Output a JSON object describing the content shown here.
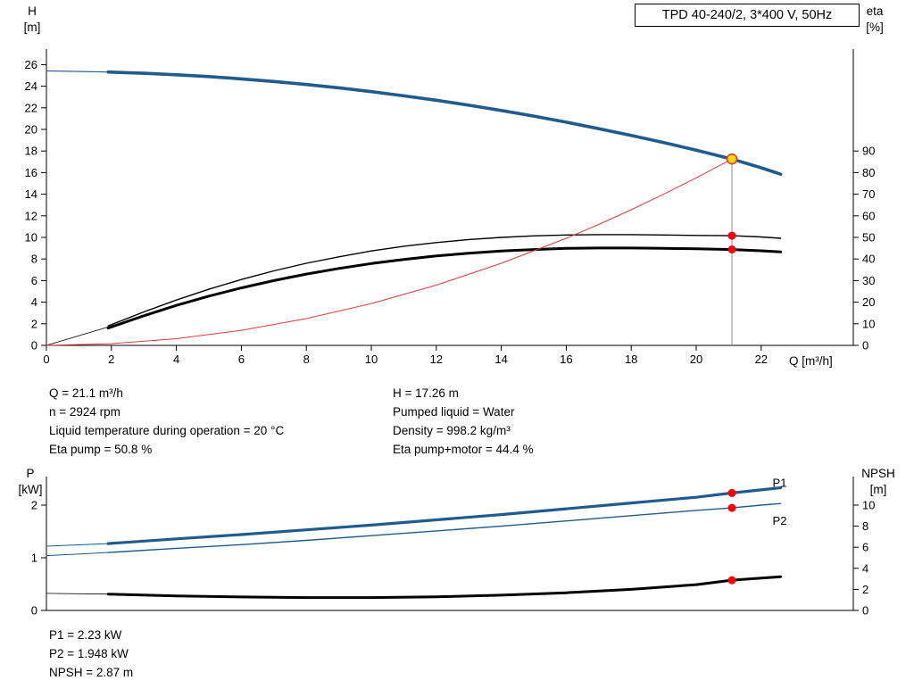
{
  "title_box": "TPD 40-240/2, 3*400 V, 50Hz",
  "colors": {
    "curve_blue": "#1f5c8d",
    "curve_black": "#000000",
    "curve_red": "#e03a3a",
    "marker_red": "#ff0000",
    "duty_fill": "#ffd800",
    "duty_line_gray": "#8a8a8a"
  },
  "chart_data": [
    {
      "type": "line",
      "name": "hq-eta-chart",
      "title": "TPD 40-240/2, 3*400 V, 50Hz",
      "axis_titles": {
        "left": [
          "H",
          "[m]"
        ],
        "right": [
          "eta",
          "[%]"
        ],
        "x": "Q [m³/h]"
      },
      "xlim": [
        0,
        24.8
      ],
      "ylim_left": [
        0,
        27.4
      ],
      "ylim_right": [
        0,
        135
      ],
      "grid": false,
      "x_ticks": [
        0,
        2,
        4,
        6,
        8,
        10,
        12,
        14,
        16,
        18,
        20,
        22
      ],
      "y_ticks_left": [
        0,
        2,
        4,
        6,
        8,
        10,
        12,
        14,
        16,
        18,
        20,
        22,
        24,
        26
      ],
      "y_ticks_right": [
        0,
        10,
        20,
        30,
        40,
        50,
        60,
        70,
        80,
        90
      ],
      "series": [
        {
          "name": "head-curve-lead",
          "axis": "left",
          "color": "#1f5c8d",
          "width": 1.1,
          "points": [
            [
              0,
              25.42
            ],
            [
              1.9,
              25.31
            ]
          ]
        },
        {
          "name": "head-curve",
          "axis": "left",
          "color": "#1f5c8d",
          "width": 3.6,
          "points": [
            [
              1.9,
              25.31
            ],
            [
              3,
              25.2
            ],
            [
              4,
              25.06
            ],
            [
              5,
              24.89
            ],
            [
              6,
              24.68
            ],
            [
              7,
              24.44
            ],
            [
              8,
              24.16
            ],
            [
              9,
              23.85
            ],
            [
              10,
              23.5
            ],
            [
              11,
              23.11
            ],
            [
              12,
              22.7
            ],
            [
              13,
              22.24
            ],
            [
              14,
              21.75
            ],
            [
              15,
              21.23
            ],
            [
              16,
              20.67
            ],
            [
              17,
              20.07
            ],
            [
              18,
              19.44
            ],
            [
              19,
              18.78
            ],
            [
              20,
              18.08
            ],
            [
              21.1,
              17.26
            ],
            [
              22,
              16.45
            ],
            [
              22.6,
              15.85
            ]
          ]
        },
        {
          "name": "eta-lead",
          "axis": "right",
          "color": "#000000",
          "width": 0.8,
          "points": [
            [
              0,
              0
            ],
            [
              1.9,
              8.5
            ]
          ]
        },
        {
          "name": "eta-pump-curve",
          "axis": "right",
          "color": "#000000",
          "width": 1.4,
          "points": [
            [
              1.9,
              9
            ],
            [
              3,
              15.5
            ],
            [
              4,
              21
            ],
            [
              5,
              26
            ],
            [
              6,
              30.5
            ],
            [
              7,
              34.5
            ],
            [
              8,
              38
            ],
            [
              9,
              41
            ],
            [
              10,
              43.7
            ],
            [
              11,
              45.9
            ],
            [
              12,
              47.6
            ],
            [
              13,
              49
            ],
            [
              14,
              50
            ],
            [
              15,
              50.7
            ],
            [
              16,
              51.1
            ],
            [
              17,
              51.3
            ],
            [
              18,
              51.3
            ],
            [
              19,
              51.1
            ],
            [
              20,
              50.9
            ],
            [
              21.1,
              50.8
            ],
            [
              22,
              50.2
            ],
            [
              22.6,
              49.6
            ]
          ]
        },
        {
          "name": "eta-pump-motor-curve",
          "axis": "right",
          "color": "#000000",
          "width": 3,
          "points": [
            [
              1.9,
              8
            ],
            [
              3,
              13.7
            ],
            [
              4,
              18.5
            ],
            [
              5,
              22.8
            ],
            [
              6,
              26.6
            ],
            [
              7,
              30
            ],
            [
              8,
              33
            ],
            [
              9,
              35.6
            ],
            [
              10,
              37.9
            ],
            [
              11,
              39.8
            ],
            [
              12,
              41.4
            ],
            [
              13,
              42.7
            ],
            [
              14,
              43.7
            ],
            [
              15,
              44.4
            ],
            [
              16,
              44.9
            ],
            [
              17,
              45.1
            ],
            [
              18,
              45.1
            ],
            [
              19,
              44.9
            ],
            [
              20,
              44.7
            ],
            [
              21.1,
              44.4
            ],
            [
              22,
              43.8
            ],
            [
              22.6,
              43.3
            ]
          ]
        },
        {
          "name": "system-curve",
          "axis": "left",
          "color": "#e03a3a",
          "width": 1,
          "points": [
            [
              0,
              0
            ],
            [
              2,
              0.16
            ],
            [
              4,
              0.62
            ],
            [
              6,
              1.4
            ],
            [
              8,
              2.48
            ],
            [
              10,
              3.88
            ],
            [
              12,
              5.58
            ],
            [
              14,
              7.6
            ],
            [
              16,
              9.92
            ],
            [
              17,
              11.2
            ],
            [
              18,
              12.56
            ],
            [
              19,
              14.0
            ],
            [
              20,
              15.51
            ],
            [
              21.1,
              17.26
            ]
          ]
        }
      ],
      "duty_line": {
        "q": 21.1,
        "h": 17.26
      },
      "markers": [
        {
          "name": "duty-point",
          "q": 21.1,
          "v": 17.26,
          "axis": "left",
          "style": "duty"
        },
        {
          "name": "eta-pump-point",
          "q": 21.1,
          "v": 50.8,
          "axis": "right",
          "style": "dot"
        },
        {
          "name": "eta-pump-motor-point",
          "q": 21.1,
          "v": 44.4,
          "axis": "right",
          "style": "dot"
        }
      ]
    },
    {
      "type": "line",
      "name": "power-npsh-chart",
      "axis_titles": {
        "left": [
          "P",
          "[kW]"
        ],
        "right": [
          "NPSH",
          "[m]"
        ]
      },
      "xlim": [
        0,
        24.8
      ],
      "ylim_left": [
        0,
        2.55
      ],
      "ylim_right": [
        0,
        12.7
      ],
      "grid": false,
      "x_ticks": [],
      "y_ticks_left": [
        0,
        1,
        2
      ],
      "y_ticks_right": [
        0,
        2,
        4,
        6,
        8,
        10
      ],
      "series": [
        {
          "name": "p1-lead",
          "axis": "left",
          "color": "#1f5c8d",
          "width": 1,
          "points": [
            [
              0,
              1.22
            ],
            [
              1.9,
              1.27
            ]
          ]
        },
        {
          "name": "p1-curve",
          "axis": "left",
          "color": "#1f5c8d",
          "width": 3.2,
          "points": [
            [
              1.9,
              1.27
            ],
            [
              4,
              1.36
            ],
            [
              6,
              1.44
            ],
            [
              8,
              1.53
            ],
            [
              10,
              1.62
            ],
            [
              12,
              1.72
            ],
            [
              14,
              1.82
            ],
            [
              16,
              1.93
            ],
            [
              18,
              2.04
            ],
            [
              20,
              2.15
            ],
            [
              21.1,
              2.23
            ],
            [
              22,
              2.29
            ],
            [
              22.6,
              2.33
            ]
          ]
        },
        {
          "name": "p2-lead",
          "axis": "left",
          "color": "#1f5c8d",
          "width": 1,
          "points": [
            [
              0,
              1.04
            ],
            [
              1.9,
              1.1
            ]
          ]
        },
        {
          "name": "p2-curve",
          "axis": "left",
          "color": "#1f5c8d",
          "width": 1.4,
          "points": [
            [
              1.9,
              1.1
            ],
            [
              4,
              1.18
            ],
            [
              6,
              1.25
            ],
            [
              8,
              1.33
            ],
            [
              10,
              1.42
            ],
            [
              12,
              1.51
            ],
            [
              14,
              1.6
            ],
            [
              16,
              1.7
            ],
            [
              18,
              1.8
            ],
            [
              20,
              1.9
            ],
            [
              21.1,
              1.948
            ],
            [
              22,
              2.0
            ],
            [
              22.6,
              2.03
            ]
          ]
        },
        {
          "name": "npsh-lead",
          "axis": "right",
          "color": "#000000",
          "width": 0.8,
          "points": [
            [
              0,
              1.62
            ],
            [
              1.9,
              1.55
            ]
          ]
        },
        {
          "name": "npsh-curve",
          "axis": "right",
          "color": "#000000",
          "width": 3,
          "points": [
            [
              1.9,
              1.55
            ],
            [
              4,
              1.38
            ],
            [
              6,
              1.28
            ],
            [
              8,
              1.22
            ],
            [
              10,
              1.22
            ],
            [
              12,
              1.3
            ],
            [
              14,
              1.45
            ],
            [
              16,
              1.68
            ],
            [
              18,
              2.0
            ],
            [
              20,
              2.45
            ],
            [
              21.1,
              2.87
            ],
            [
              22,
              3.08
            ],
            [
              22.6,
              3.2
            ]
          ]
        }
      ],
      "markers": [
        {
          "name": "p1-point",
          "q": 21.1,
          "v": 2.23,
          "axis": "left",
          "style": "dot"
        },
        {
          "name": "p2-point",
          "q": 21.1,
          "v": 1.948,
          "axis": "left",
          "style": "dot"
        },
        {
          "name": "npsh-point",
          "q": 21.1,
          "v": 2.87,
          "axis": "right",
          "style": "dot"
        }
      ],
      "curve_labels": [
        {
          "text": "P1",
          "q": 22.35,
          "v": 2.35,
          "axis": "left",
          "color": "#1f5c8d"
        },
        {
          "text": "P2",
          "q": 22.35,
          "v": 1.63,
          "axis": "left",
          "color": "#1f5c8d"
        }
      ]
    }
  ],
  "info": {
    "left": [
      "Q = 21.1 m³/h",
      "n = 2924 rpm",
      "Liquid temperature during operation = 20 °C",
      "Eta pump = 50.8 %"
    ],
    "right": [
      "H = 17.26 m",
      "Pumped liquid = Water",
      "Density = 998.2 kg/m³",
      "Eta pump+motor = 44.4 %"
    ]
  },
  "results": [
    "P1 = 2.23 kW",
    "P2 = 1.948 kW",
    "NPSH = 2.87 m"
  ]
}
